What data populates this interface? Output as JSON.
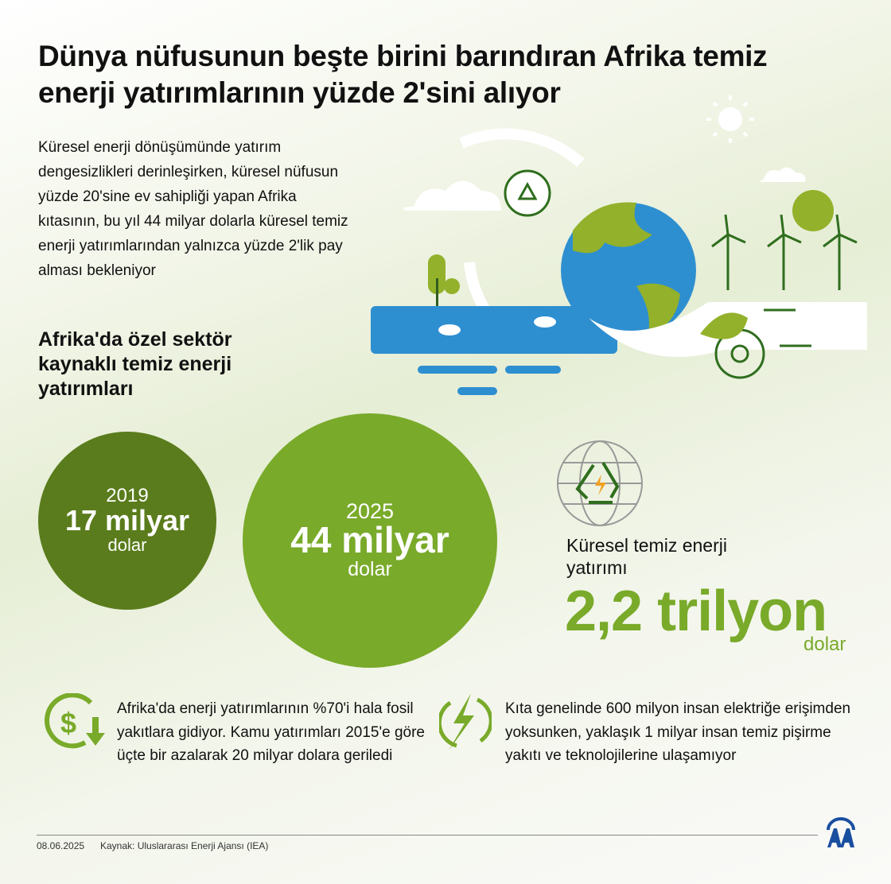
{
  "title": "Dünya nüfusunun beşte birini barındıran Afrika temiz enerji yatırımlarının yüzde 2'sini alıyor",
  "intro": "Küresel enerji dönüşümünde yatırım dengesizlikleri derinleşirken, küresel nüfusun yüzde 20'sine ev sahipliği yapan Afrika kıtasının, bu yıl 44 milyar dolarla küresel temiz enerji yatırımlarından yalnızca yüzde 2'lik pay alması bekleniyor",
  "subhead": "Afrika'da özel sektör kaynaklı temiz enerji yatırımları",
  "circles": [
    {
      "year": "2019",
      "amount": "17 milyar",
      "unit": "dolar",
      "value_billion_usd": 17,
      "color": "#5a7c1c"
    },
    {
      "year": "2025",
      "amount": "44 milyar",
      "unit": "dolar",
      "value_billion_usd": 44,
      "color": "#79aa2a"
    }
  ],
  "global": {
    "label": "Küresel temiz enerji yatırımı",
    "value": "2,2 trilyon",
    "unit": "dolar",
    "icon": "recycle-globe-icon",
    "color": "#79aa2a"
  },
  "facts": [
    {
      "icon": "dollar-down-icon",
      "text": "Afrika'da enerji yatırımlarının %70'i hala fosil yakıtlara gidiyor. Kamu yatırımları 2015'e göre üçte bir azalarak 20 milyar dolara geriledi"
    },
    {
      "icon": "lightning-icon",
      "text": "Kıta genelinde 600 milyon insan elektriğe erişimden yoksunken, yaklaşık 1 milyar insan temiz pişirme yakıtı ve teknolojilerine ulaşamıyor"
    }
  ],
  "footer": {
    "date": "08.06.2025",
    "source": "Kaynak: Uluslararası Enerji Ajansı (IEA)",
    "logo": "AA"
  },
  "colors": {
    "accent": "#79aa2a",
    "dark_green": "#5a7c1c",
    "water": "#2e8fd0",
    "globe_land": "#93b12a"
  }
}
